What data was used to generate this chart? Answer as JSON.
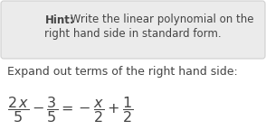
{
  "hint_label": "Hint:",
  "hint_text1": " Write the linear polynomial on the",
  "hint_text2": "right hand side in standard form.",
  "expand_text": "Expand out terms of the right hand side:",
  "bg_color": "#ffffff",
  "hint_box_color": "#ebebeb",
  "hint_box_border": "#d0d0d0",
  "text_color": "#444444",
  "hint_font_size": 8.5,
  "expand_font_size": 9.0,
  "math_font_size": 11.5
}
